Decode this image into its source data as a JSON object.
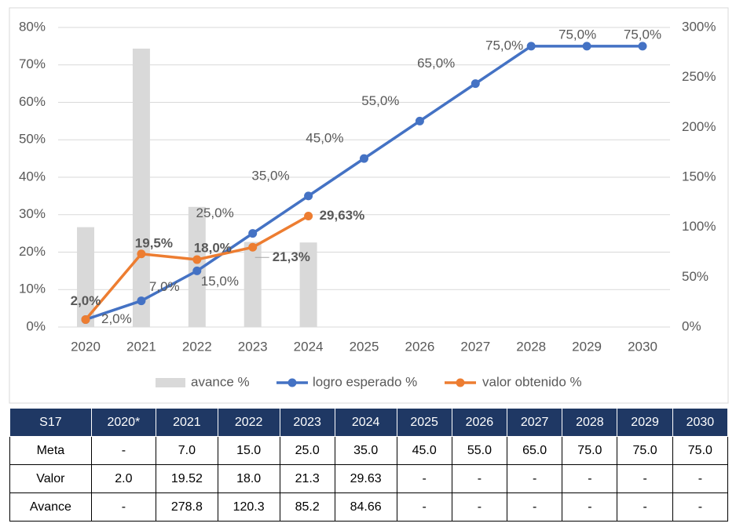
{
  "chart_data": {
    "type": "combo",
    "categories": [
      "2020",
      "2021",
      "2022",
      "2023",
      "2024",
      "2025",
      "2026",
      "2027",
      "2028",
      "2029",
      "2030"
    ],
    "series": [
      {
        "name": "avance %",
        "type": "bar",
        "axis": "y2",
        "color": "#d9d9d9",
        "values": [
          100,
          278.8,
          120.3,
          85.2,
          84.66,
          null,
          null,
          null,
          null,
          null,
          null
        ]
      },
      {
        "name": "logro esperado %",
        "type": "line",
        "color": "#4472c4",
        "values": [
          2.0,
          7.0,
          15.0,
          25.0,
          35.0,
          45.0,
          55.0,
          65.0,
          75.0,
          75.0,
          75.0
        ],
        "value_labels": [
          "2,0%",
          "7,0%",
          "15,0%",
          "25,0%",
          "35,0%",
          "45,0%",
          "55,0%",
          "65,0%",
          "75,0%",
          "75,0%",
          "75,0%"
        ]
      },
      {
        "name": "valor obtenido %",
        "type": "line",
        "color": "#ed7d31",
        "values": [
          2.0,
          19.52,
          18.0,
          21.3,
          29.63,
          null,
          null,
          null,
          null,
          null,
          null
        ],
        "value_labels": [
          "2,0%",
          "19,5%",
          "18,0%",
          "21,3%",
          "29,63%",
          null,
          null,
          null,
          null,
          null,
          null
        ]
      }
    ],
    "ylim": [
      0,
      80
    ],
    "yticks": [
      {
        "value": 0,
        "label": "0%"
      },
      {
        "value": 10,
        "label": "10%"
      },
      {
        "value": 20,
        "label": "20%"
      },
      {
        "value": 30,
        "label": "30%"
      },
      {
        "value": 40,
        "label": "40%"
      },
      {
        "value": 50,
        "label": "50%"
      },
      {
        "value": 60,
        "label": "60%"
      },
      {
        "value": 70,
        "label": "70%"
      },
      {
        "value": 80,
        "label": "80%"
      }
    ],
    "y2lim": [
      0,
      300
    ],
    "y2ticks": [
      {
        "value": 0,
        "label": "0%"
      },
      {
        "value": 50,
        "label": "50%"
      },
      {
        "value": 100,
        "label": "100%"
      },
      {
        "value": 150,
        "label": "150%"
      },
      {
        "value": 200,
        "label": "200%"
      },
      {
        "value": 250,
        "label": "250%"
      },
      {
        "value": 300,
        "label": "300%"
      }
    ],
    "grid": true,
    "legend": "bottom"
  },
  "table": {
    "header": [
      "S17",
      "2020*",
      "2021",
      "2022",
      "2023",
      "2024",
      "2025",
      "2026",
      "2027",
      "2028",
      "2029",
      "2030"
    ],
    "rows": [
      [
        "Meta",
        "-",
        "7.0",
        "15.0",
        "25.0",
        "35.0",
        "45.0",
        "55.0",
        "65.0",
        "75.0",
        "75.0",
        "75.0"
      ],
      [
        "Valor",
        "2.0",
        "19.52",
        "18.0",
        "21.3",
        "29.63",
        "-",
        "-",
        "-",
        "-",
        "-",
        "-"
      ],
      [
        "Avance",
        "-",
        "278.8",
        "120.3",
        "85.2",
        "84.66",
        "-",
        "-",
        "-",
        "-",
        "-",
        "-"
      ]
    ]
  }
}
